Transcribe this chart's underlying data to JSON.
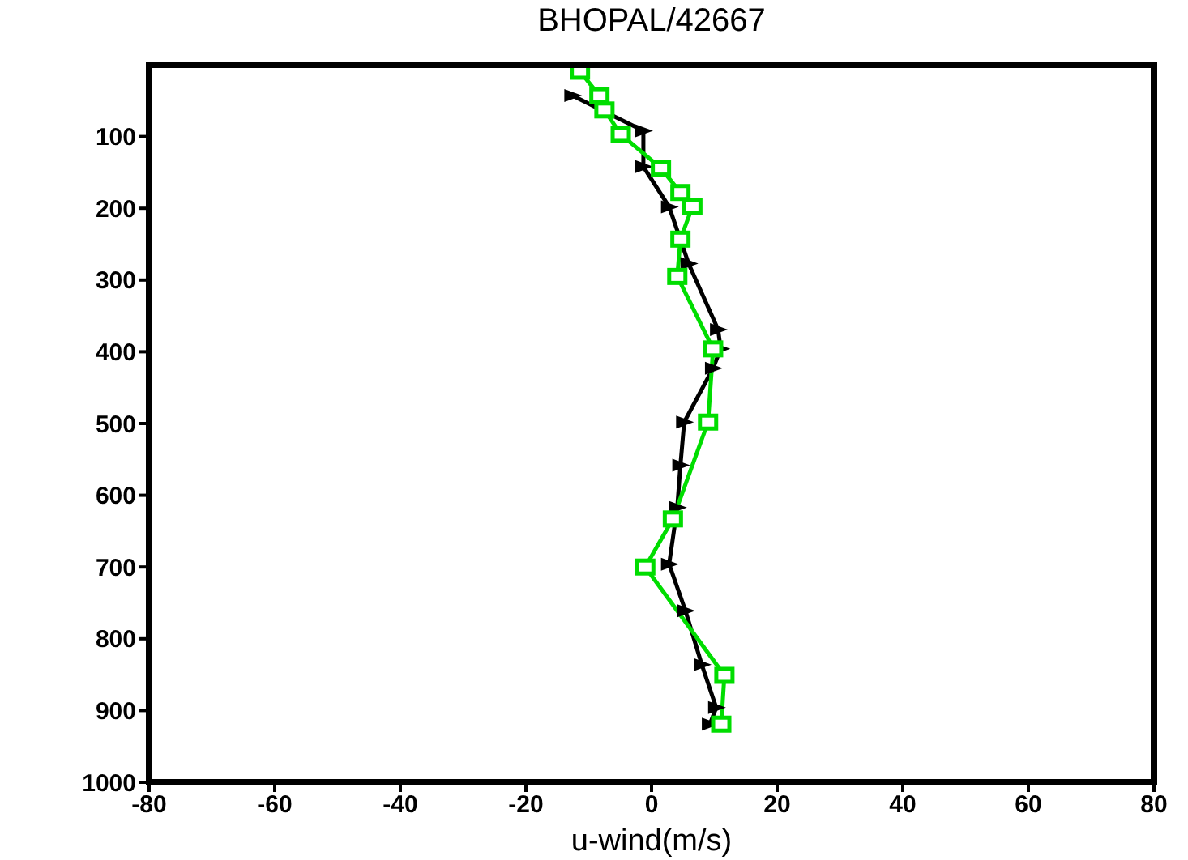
{
  "chart_data": {
    "type": "line",
    "title": "BHOPAL/42667",
    "xlabel": "u-wind(m/s)",
    "xlim": [
      -80,
      80
    ],
    "xticks": [
      -80,
      -60,
      -40,
      -20,
      0,
      20,
      40,
      60,
      80
    ],
    "ylim": [
      1000,
      0
    ],
    "yticks": [
      100,
      200,
      300,
      400,
      500,
      600,
      700,
      800,
      900,
      1000
    ],
    "line_style": "solid",
    "series": [
      {
        "color": "#000000",
        "marker": "triangle",
        "x": [
          -12.6,
          -1.3,
          -1.3,
          2.8,
          5.9,
          10.6,
          11,
          9.8,
          5.2,
          4.6,
          4.1,
          2.8,
          5.4,
          8,
          10.3,
          9.3
        ],
        "values": [
          43,
          92,
          142,
          198,
          277,
          369,
          396,
          423,
          498,
          558,
          617,
          696,
          761,
          836,
          896,
          919
        ]
      },
      {
        "color": "#00dd00",
        "marker": "square",
        "x": [
          -11.4,
          -8.3,
          -7.5,
          -4.9,
          1.5,
          4.6,
          6.5,
          4.6,
          4.1,
          9.8,
          9,
          3.4,
          -1,
          11.6,
          11.1
        ],
        "values": [
          9,
          43,
          63,
          97,
          144,
          178,
          198,
          243,
          295,
          396,
          498,
          633,
          700,
          851,
          919
        ]
      }
    ]
  }
}
